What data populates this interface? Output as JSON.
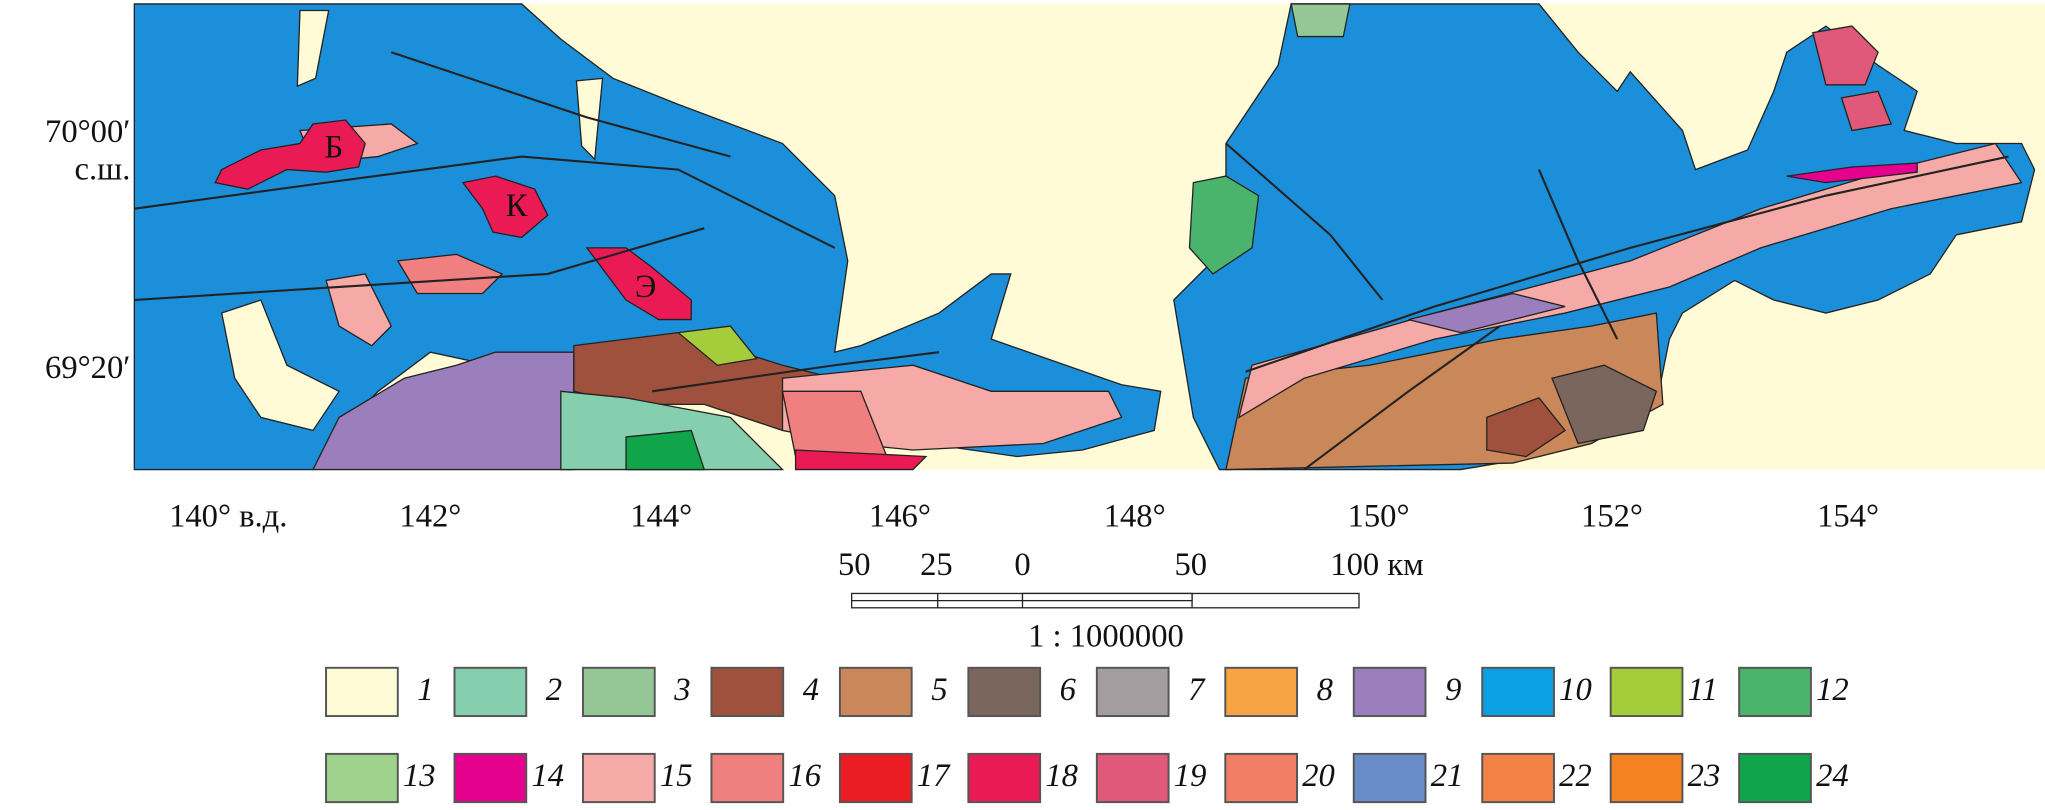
{
  "map": {
    "lat_labels": [
      "70°00′",
      "с.ш.",
      "69°20′"
    ],
    "lon_labels": [
      "140° в.д.",
      "142°",
      "144°",
      "146°",
      "148°",
      "150°",
      "152°",
      "154°"
    ],
    "place_labels": [
      "Б",
      "К",
      "Э"
    ]
  },
  "scale": {
    "distance_labels": [
      "50",
      "25",
      "0",
      "50",
      "100 км"
    ],
    "ratio": "1 : 1000000"
  },
  "legend": {
    "items": [
      {
        "label": "1",
        "color": "#fffbd6"
      },
      {
        "label": "2",
        "color": "#86cfae"
      },
      {
        "label": "3",
        "color": "#95c796"
      },
      {
        "label": "4",
        "color": "#a0513e"
      },
      {
        "label": "5",
        "color": "#c9875a"
      },
      {
        "label": "6",
        "color": "#7a665c"
      },
      {
        "label": "7",
        "color": "#a49da0"
      },
      {
        "label": "8",
        "color": "#f6a444"
      },
      {
        "label": "9",
        "color": "#9b7fbd"
      },
      {
        "label": "10",
        "color": "#0aa0e2"
      },
      {
        "label": "11",
        "color": "#a5cc3b"
      },
      {
        "label": "12",
        "color": "#4bb46c"
      },
      {
        "label": "13",
        "color": "#9fd38d"
      },
      {
        "label": "14",
        "color": "#e6008e"
      },
      {
        "label": "15",
        "color": "#f5aaa8"
      },
      {
        "label": "16",
        "color": "#f08080"
      },
      {
        "label": "17",
        "color": "#ec1c24"
      },
      {
        "label": "18",
        "color": "#ea1a54"
      },
      {
        "label": "19",
        "color": "#e05978"
      },
      {
        "label": "20",
        "color": "#f27f65"
      },
      {
        "label": "21",
        "color": "#6a8cc7"
      },
      {
        "label": "22",
        "color": "#f28246"
      },
      {
        "label": "23",
        "color": "#f58220"
      },
      {
        "label": "24",
        "color": "#10a54a"
      }
    ]
  }
}
